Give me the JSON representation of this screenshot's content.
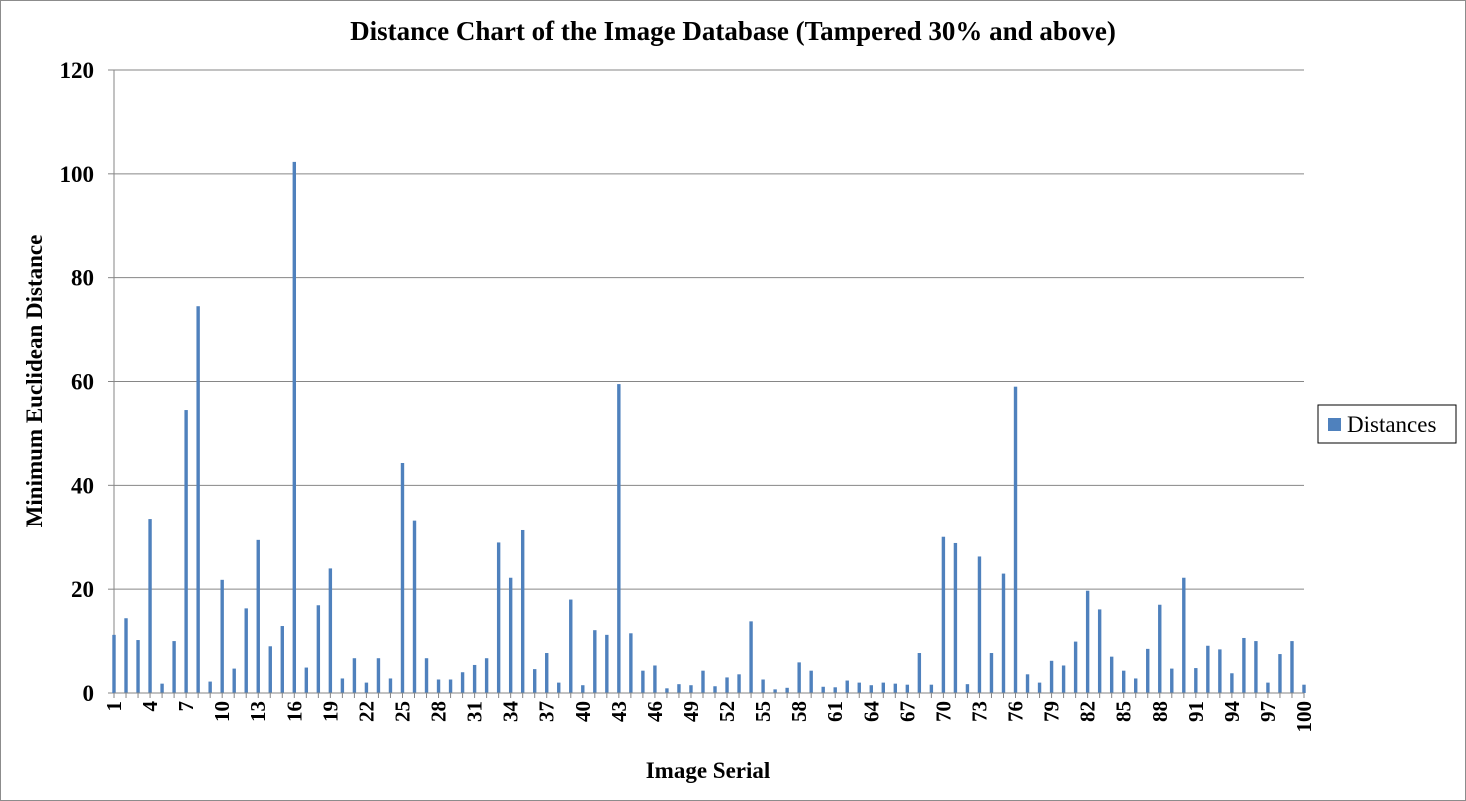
{
  "chart_data": {
    "type": "bar",
    "title": "Distance Chart of the Image Database (Tampered 30% and above)",
    "xlabel": "Image Serial",
    "ylabel": "Minimum Euclidean Distance",
    "ylim": [
      0,
      120
    ],
    "yticks": [
      0,
      20,
      40,
      60,
      80,
      100,
      120
    ],
    "grid": true,
    "legend_position": "right",
    "x_tick_labels": [
      "1",
      "4",
      "7",
      "10",
      "13",
      "16",
      "19",
      "22",
      "25",
      "28",
      "31",
      "34",
      "37",
      "40",
      "43",
      "46",
      "49",
      "52",
      "55",
      "58",
      "61",
      "64",
      "67",
      "70",
      "73",
      "76",
      "79",
      "82",
      "85",
      "88",
      "91",
      "94",
      "97",
      "100"
    ],
    "categories": [
      1,
      2,
      3,
      4,
      5,
      6,
      7,
      8,
      9,
      10,
      11,
      12,
      13,
      14,
      15,
      16,
      17,
      18,
      19,
      20,
      21,
      22,
      23,
      24,
      25,
      26,
      27,
      28,
      29,
      30,
      31,
      32,
      33,
      34,
      35,
      36,
      37,
      38,
      39,
      40,
      41,
      42,
      43,
      44,
      45,
      46,
      47,
      48,
      49,
      50,
      51,
      52,
      53,
      54,
      55,
      56,
      57,
      58,
      59,
      60,
      61,
      62,
      63,
      64,
      65,
      66,
      67,
      68,
      69,
      70,
      71,
      72,
      73,
      74,
      75,
      76,
      77,
      78,
      79,
      80,
      81,
      82,
      83,
      84,
      85,
      86,
      87,
      88,
      89,
      90,
      91,
      92,
      93,
      94,
      95,
      96,
      97,
      98,
      99,
      100
    ],
    "series": [
      {
        "name": "Distances",
        "color": "#4f81bd",
        "values": [
          11.2,
          14.4,
          10.2,
          33.5,
          1.8,
          10.0,
          54.5,
          74.5,
          2.2,
          21.8,
          4.7,
          16.3,
          29.5,
          9.0,
          12.9,
          102.3,
          4.9,
          16.9,
          24.0,
          2.8,
          6.7,
          2.0,
          6.7,
          2.8,
          44.3,
          33.2,
          6.7,
          2.6,
          2.6,
          4.0,
          5.4,
          6.7,
          29.0,
          22.2,
          31.4,
          4.6,
          7.7,
          2.0,
          18.0,
          1.5,
          12.1,
          11.2,
          59.5,
          11.5,
          4.3,
          5.3,
          0.9,
          1.7,
          1.5,
          4.3,
          1.3,
          3.0,
          3.6,
          13.8,
          2.6,
          0.7,
          1.0,
          5.9,
          4.3,
          1.2,
          1.1,
          2.4,
          2.0,
          1.5,
          2.0,
          1.8,
          1.6,
          7.7,
          1.6,
          30.1,
          28.9,
          1.7,
          26.3,
          7.7,
          23.0,
          59.0,
          3.6,
          2.0,
          6.2,
          5.3,
          9.9,
          19.7,
          16.1,
          7.0,
          4.3,
          2.8,
          8.5,
          17.0,
          4.7,
          22.2,
          4.8,
          9.1,
          8.4,
          3.8,
          10.6,
          10.0,
          2.0,
          7.5,
          10.0,
          1.6
        ]
      }
    ]
  }
}
